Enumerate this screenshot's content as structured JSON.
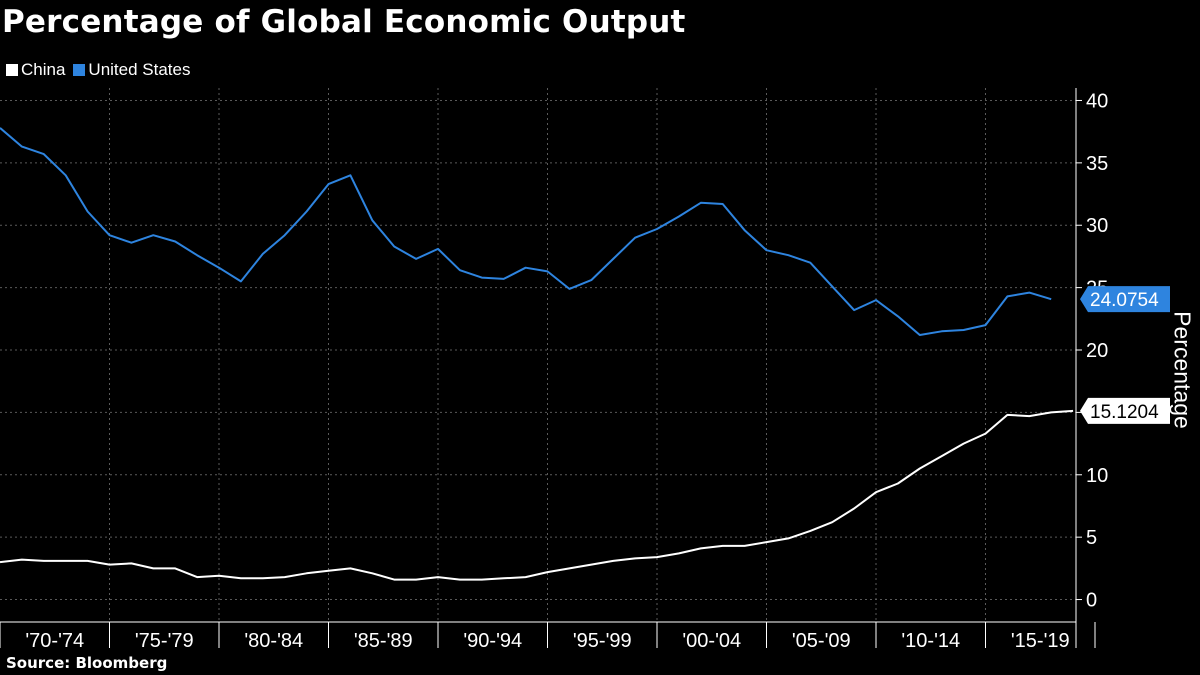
{
  "chart_data": {
    "type": "line",
    "title": "Percentage of Global Economic Output",
    "ylabel": "Percentage",
    "xlabel": "",
    "source": "Source: Bloomberg",
    "ylim": [
      -1.8,
      41
    ],
    "yticks": [
      0,
      5,
      10,
      15,
      20,
      25,
      30,
      35,
      40
    ],
    "grid": true,
    "legend_position": "top-left",
    "x_start": 1970,
    "x_end": 2019,
    "x_categories": [
      "'70-'74",
      "'75-'79",
      "'80-'84",
      "'85-'89",
      "'90-'94",
      "'95-'99",
      "'00-'04",
      "'05-'09",
      "'10-'14",
      "'15-'19"
    ],
    "series": [
      {
        "name": "China",
        "color": "#ffffff",
        "label_text": "15.1204",
        "values": [
          [
            1970,
            3.0
          ],
          [
            1971,
            3.2
          ],
          [
            1972,
            3.1
          ],
          [
            1973,
            3.1
          ],
          [
            1974,
            3.1
          ],
          [
            1975,
            2.8
          ],
          [
            1976,
            2.9
          ],
          [
            1977,
            2.5
          ],
          [
            1978,
            2.5
          ],
          [
            1979,
            1.8
          ],
          [
            1980,
            1.9
          ],
          [
            1981,
            1.7
          ],
          [
            1982,
            1.7
          ],
          [
            1983,
            1.8
          ],
          [
            1984,
            2.1
          ],
          [
            1985,
            2.3
          ],
          [
            1986,
            2.5
          ],
          [
            1987,
            2.1
          ],
          [
            1988,
            1.6
          ],
          [
            1989,
            1.6
          ],
          [
            1990,
            1.8
          ],
          [
            1991,
            1.6
          ],
          [
            1992,
            1.6
          ],
          [
            1993,
            1.7
          ],
          [
            1994,
            1.8
          ],
          [
            1995,
            2.2
          ],
          [
            1996,
            2.5
          ],
          [
            1997,
            2.8
          ],
          [
            1998,
            3.1
          ],
          [
            1999,
            3.3
          ],
          [
            2000,
            3.4
          ],
          [
            2001,
            3.7
          ],
          [
            2002,
            4.1
          ],
          [
            2003,
            4.3
          ],
          [
            2004,
            4.3
          ],
          [
            2005,
            4.6
          ],
          [
            2006,
            4.9
          ],
          [
            2007,
            5.5
          ],
          [
            2008,
            6.2
          ],
          [
            2009,
            7.3
          ],
          [
            2010,
            8.6
          ],
          [
            2011,
            9.3
          ],
          [
            2012,
            10.5
          ],
          [
            2013,
            11.5
          ],
          [
            2014,
            12.5
          ],
          [
            2015,
            13.3
          ],
          [
            2016,
            14.8
          ],
          [
            2017,
            14.7
          ],
          [
            2018,
            15.0
          ],
          [
            2019,
            15.1204
          ]
        ]
      },
      {
        "name": "United States",
        "color": "#2e84df",
        "label_text": "24.0754",
        "values": [
          [
            1970,
            37.8
          ],
          [
            1971,
            36.3
          ],
          [
            1972,
            35.7
          ],
          [
            1973,
            34.0
          ],
          [
            1974,
            31.1
          ],
          [
            1975,
            29.2
          ],
          [
            1976,
            28.6
          ],
          [
            1977,
            29.2
          ],
          [
            1978,
            28.7
          ],
          [
            1979,
            27.6
          ],
          [
            1980,
            26.6
          ],
          [
            1981,
            25.5
          ],
          [
            1982,
            27.7
          ],
          [
            1983,
            29.2
          ],
          [
            1984,
            31.1
          ],
          [
            1985,
            33.3
          ],
          [
            1986,
            34.0
          ],
          [
            1987,
            30.4
          ],
          [
            1988,
            28.3
          ],
          [
            1989,
            27.3
          ],
          [
            1990,
            28.1
          ],
          [
            1991,
            26.4
          ],
          [
            1992,
            25.8
          ],
          [
            1993,
            25.7
          ],
          [
            1994,
            26.6
          ],
          [
            1995,
            26.3
          ],
          [
            1996,
            24.9
          ],
          [
            1997,
            25.6
          ],
          [
            1998,
            27.3
          ],
          [
            1999,
            29.0
          ],
          [
            2000,
            29.7
          ],
          [
            2001,
            30.7
          ],
          [
            2002,
            31.8
          ],
          [
            2003,
            31.7
          ],
          [
            2004,
            29.6
          ],
          [
            2005,
            28.0
          ],
          [
            2006,
            27.6
          ],
          [
            2007,
            27.0
          ],
          [
            2008,
            25.1
          ],
          [
            2009,
            23.2
          ],
          [
            2010,
            24.0
          ],
          [
            2011,
            22.7
          ],
          [
            2012,
            21.2
          ],
          [
            2013,
            21.5
          ],
          [
            2014,
            21.6
          ],
          [
            2015,
            22.0
          ],
          [
            2016,
            24.3
          ],
          [
            2017,
            24.6
          ],
          [
            2018,
            24.0754
          ]
        ]
      }
    ]
  }
}
